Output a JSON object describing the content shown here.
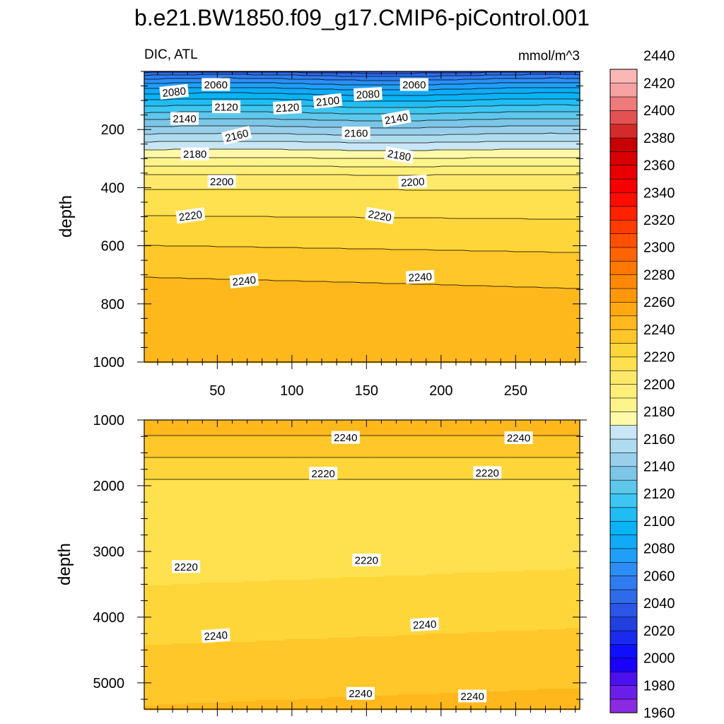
{
  "figure": {
    "title": "b.e21.BW1850.f09_g17.CMIP6-piControl.001",
    "variable_label": "DIC, ATL",
    "units_label": "mmol/m^3"
  },
  "colorbar": {
    "tick_labels": [
      "1960",
      "1980",
      "2000",
      "2020",
      "2040",
      "2060",
      "2080",
      "2100",
      "2120",
      "2140",
      "2160",
      "2180",
      "2200",
      "2220",
      "2240",
      "2260",
      "2280",
      "2300",
      "2320",
      "2340",
      "2360",
      "2380",
      "2400",
      "2420",
      "2440"
    ],
    "boundaries": [
      1960,
      1970,
      1980,
      1990,
      2000,
      2010,
      2020,
      2030,
      2040,
      2050,
      2060,
      2070,
      2080,
      2090,
      2100,
      2110,
      2120,
      2130,
      2140,
      2150,
      2160,
      2170,
      2180,
      2190,
      2200,
      2210,
      2220,
      2230,
      2240,
      2250,
      2260,
      2270,
      2280,
      2290,
      2300,
      2310,
      2320,
      2330,
      2340,
      2350,
      2360,
      2370,
      2380,
      2390,
      2400,
      2410,
      2420,
      2430,
      2440,
      2450
    ],
    "colors": [
      "#8a2be2",
      "#6a1ee8",
      "#4b10ee",
      "#1a00ff",
      "#0f0fff",
      "#1a2aee",
      "#2040e0",
      "#2b55e6",
      "#2f6ae8",
      "#2e7cf0",
      "#2b8ef6",
      "#1f9ff8",
      "#10aaf8",
      "#0ab3f5",
      "#20bdf5",
      "#3ec6f2",
      "#5ec7ec",
      "#7cc6e8",
      "#98d0ec",
      "#b0dcf0",
      "#c8e6f5",
      "#fff9a8",
      "#fff48c",
      "#ffef78",
      "#ffe96a",
      "#ffe04e",
      "#ffd63a",
      "#ffc72a",
      "#ffb81c",
      "#ffa812",
      "#ff980a",
      "#ff8806",
      "#ff7804",
      "#ff6402",
      "#ff5000",
      "#ff3c00",
      "#ff2200",
      "#ff0c00",
      "#f60000",
      "#e80000",
      "#d80000",
      "#c80000",
      "#d42a2a",
      "#e25252",
      "#ee7a7a",
      "#f7a2a2",
      "#fbb6b6"
    ]
  },
  "chart_data": [
    {
      "type": "contour",
      "panel": "upper",
      "ylabel": "depth",
      "xlabel": "",
      "xlim": [
        1,
        293
      ],
      "ylim": [
        0,
        1000
      ],
      "y_inverted": true,
      "x_ticks": [
        "50",
        "100",
        "150",
        "200",
        "250"
      ],
      "y_ticks": [
        "200",
        "400",
        "600",
        "800",
        "1000"
      ],
      "contour_labels": [
        {
          "text": "2080",
          "x": 21,
          "y": 70,
          "angle": -6
        },
        {
          "text": "2060",
          "x": 49,
          "y": 45,
          "angle": 0
        },
        {
          "text": "2120",
          "x": 56,
          "y": 122,
          "angle": 0
        },
        {
          "text": "2120",
          "x": 97,
          "y": 124,
          "angle": -3
        },
        {
          "text": "2100",
          "x": 124,
          "y": 102,
          "angle": -6
        },
        {
          "text": "2080",
          "x": 151,
          "y": 78,
          "angle": -3
        },
        {
          "text": "2060",
          "x": 182,
          "y": 45,
          "angle": 0
        },
        {
          "text": "2140",
          "x": 28,
          "y": 162,
          "angle": 0
        },
        {
          "text": "2140",
          "x": 170,
          "y": 162,
          "angle": -10
        },
        {
          "text": "2160",
          "x": 63,
          "y": 220,
          "angle": -14
        },
        {
          "text": "2160",
          "x": 143,
          "y": 212,
          "angle": 0
        },
        {
          "text": "2180",
          "x": 35,
          "y": 284,
          "angle": 0
        },
        {
          "text": "2180",
          "x": 172,
          "y": 288,
          "angle": 10
        },
        {
          "text": "2200",
          "x": 53,
          "y": 378,
          "angle": 0
        },
        {
          "text": "2200",
          "x": 181,
          "y": 380,
          "angle": -3
        },
        {
          "text": "2220",
          "x": 32,
          "y": 496,
          "angle": -8
        },
        {
          "text": "2220",
          "x": 159,
          "y": 496,
          "angle": 10
        },
        {
          "text": "2240",
          "x": 68,
          "y": 720,
          "angle": -6
        },
        {
          "text": "2240",
          "x": 186,
          "y": 707,
          "angle": -3
        }
      ]
    },
    {
      "type": "contour",
      "panel": "lower",
      "ylabel": "depth",
      "xlabel": "",
      "xlim": [
        1,
        293
      ],
      "ylim": [
        1000,
        5400
      ],
      "y_inverted": true,
      "x_ticks": [],
      "y_ticks": [
        "1000",
        "2000",
        "3000",
        "4000",
        "5000"
      ],
      "contour_labels": [
        {
          "text": "2240",
          "x": 136,
          "y": 1265,
          "angle": 0
        },
        {
          "text": "2240",
          "x": 252,
          "y": 1270,
          "angle": 0
        },
        {
          "text": "2220",
          "x": 121,
          "y": 1810,
          "angle": 0
        },
        {
          "text": "2220",
          "x": 231,
          "y": 1800,
          "angle": 0
        },
        {
          "text": "2220",
          "x": 29,
          "y": 3230,
          "angle": 0
        },
        {
          "text": "2220",
          "x": 150,
          "y": 3130,
          "angle": 0
        },
        {
          "text": "2240",
          "x": 49,
          "y": 4280,
          "angle": -4
        },
        {
          "text": "2240",
          "x": 189,
          "y": 4110,
          "angle": -3
        },
        {
          "text": "2240",
          "x": 146,
          "y": 5160,
          "angle": 0
        },
        {
          "text": "2240",
          "x": 221,
          "y": 5200,
          "angle": 0
        }
      ]
    }
  ]
}
